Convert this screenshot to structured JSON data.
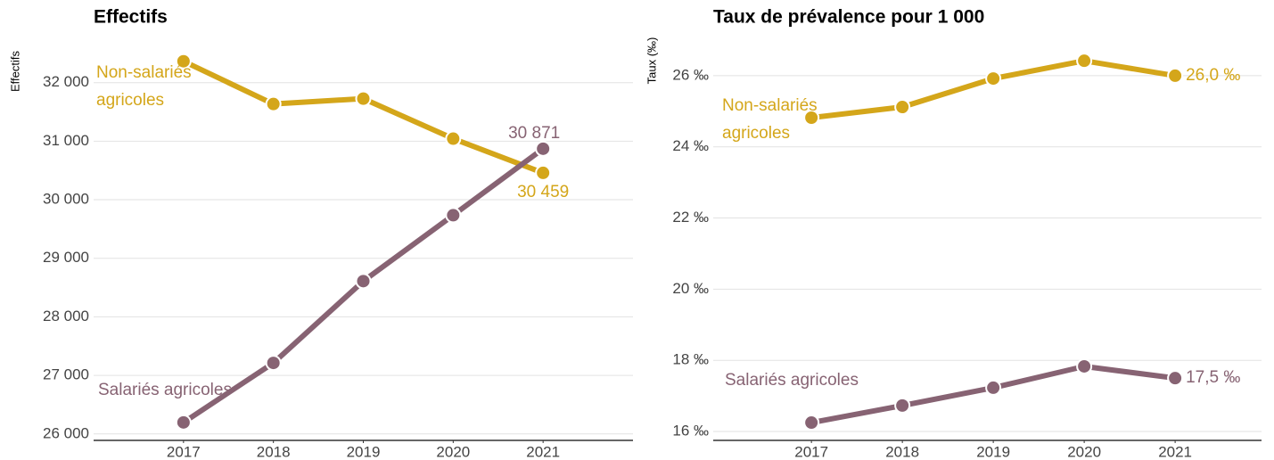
{
  "chart_data": [
    {
      "type": "line",
      "title": "Effectifs",
      "y_label": "Effectifs",
      "x": [
        2017,
        2018,
        2019,
        2020,
        2021
      ],
      "xlim": [
        2016,
        2022
      ],
      "xticks": [
        2017,
        2018,
        2019,
        2020,
        2021
      ],
      "ylim": [
        25890,
        32650
      ],
      "yticks": [
        {
          "value": 26000,
          "label": "26 000"
        },
        {
          "value": 27000,
          "label": "27 000"
        },
        {
          "value": 28000,
          "label": "28 000"
        },
        {
          "value": 29000,
          "label": "29 000"
        },
        {
          "value": 30000,
          "label": "30 000"
        },
        {
          "value": 31000,
          "label": "31 000"
        },
        {
          "value": 32000,
          "label": "32 000"
        }
      ],
      "grid": true,
      "series": [
        {
          "name": "Non-salariés agricoles",
          "color": "#d4a61a",
          "values": [
            32365,
            31635,
            31727,
            31043,
            30459
          ],
          "value_labels": [
            null,
            null,
            null,
            null,
            "30 459"
          ]
        },
        {
          "name": "Salariés agricoles",
          "color": "#876373",
          "values": [
            26197,
            27213,
            28610,
            29736,
            30871
          ],
          "value_labels": [
            null,
            null,
            null,
            null,
            "30 871"
          ]
        }
      ]
    },
    {
      "type": "line",
      "title": "Taux de prévalence pour 1 000",
      "y_label": "Taux (‰)",
      "x": [
        2017,
        2018,
        2019,
        2020,
        2021
      ],
      "xlim": [
        2015.92,
        2021.95
      ],
      "xticks": [
        2017,
        2018,
        2019,
        2020,
        2021
      ],
      "ylim": [
        15.75,
        27.0
      ],
      "yticks": [
        {
          "value": 16,
          "label": "16 ‰"
        },
        {
          "value": 18,
          "label": "18 ‰"
        },
        {
          "value": 20,
          "label": "20 ‰"
        },
        {
          "value": 22,
          "label": "22 ‰"
        },
        {
          "value": 24,
          "label": "24 ‰"
        },
        {
          "value": 26,
          "label": "26 ‰"
        }
      ],
      "grid": true,
      "series": [
        {
          "name": "Non-salariés agricoles",
          "color": "#d4a61a",
          "values": [
            24.82,
            25.12,
            25.92,
            26.42,
            26.0
          ],
          "value_labels": [
            null,
            null,
            null,
            null,
            "26,0 ‰"
          ]
        },
        {
          "name": "Salariés agricoles",
          "color": "#876373",
          "values": [
            16.25,
            16.73,
            17.23,
            17.83,
            17.5
          ],
          "value_labels": [
            null,
            null,
            null,
            null,
            "17,5 ‰"
          ]
        }
      ]
    }
  ]
}
